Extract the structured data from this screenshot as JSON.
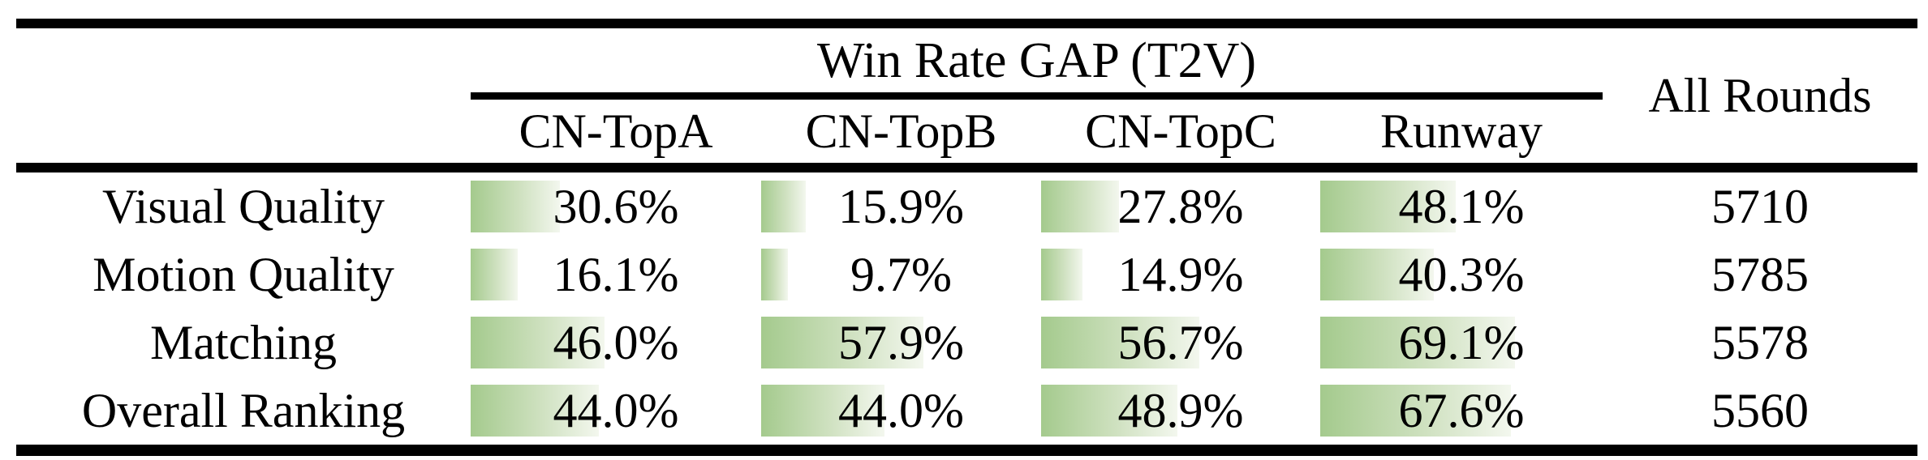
{
  "table": {
    "group_header": "Win Rate GAP (T2V)",
    "all_rounds_header": "All Rounds",
    "column_headers": [
      "CN-TopA",
      "CN-TopB",
      "CN-TopC",
      "Runway"
    ],
    "rows": [
      {
        "label": "Visual Quality",
        "cells": [
          {
            "text": "30.6%",
            "value": 30.6
          },
          {
            "text": "15.9%",
            "value": 15.9
          },
          {
            "text": "27.8%",
            "value": 27.8
          },
          {
            "text": "48.1%",
            "value": 48.1
          }
        ],
        "all_rounds": "5710"
      },
      {
        "label": "Motion Quality",
        "cells": [
          {
            "text": "16.1%",
            "value": 16.1
          },
          {
            "text": "9.7%",
            "value": 9.7
          },
          {
            "text": "14.9%",
            "value": 14.9
          },
          {
            "text": "40.3%",
            "value": 40.3
          }
        ],
        "all_rounds": "5785"
      },
      {
        "label": "Matching",
        "cells": [
          {
            "text": "46.0%",
            "value": 46.0
          },
          {
            "text": "57.9%",
            "value": 57.9
          },
          {
            "text": "56.7%",
            "value": 56.7
          },
          {
            "text": "69.1%",
            "value": 69.1
          }
        ],
        "all_rounds": "5578"
      },
      {
        "label": "Overall Ranking",
        "cells": [
          {
            "text": "44.0%",
            "value": 44.0
          },
          {
            "text": "44.0%",
            "value": 44.0
          },
          {
            "text": "48.9%",
            "value": 48.9
          },
          {
            "text": "67.6%",
            "value": 67.6
          }
        ],
        "all_rounds": "5560"
      }
    ],
    "colors": {
      "bar_gradient_start": "#a4ca8d",
      "bar_gradient_mid": "#cfe1c0",
      "bar_gradient_end": "#f3f7ee",
      "rule": "#000000",
      "text": "#000000",
      "background": "#ffffff"
    }
  }
}
